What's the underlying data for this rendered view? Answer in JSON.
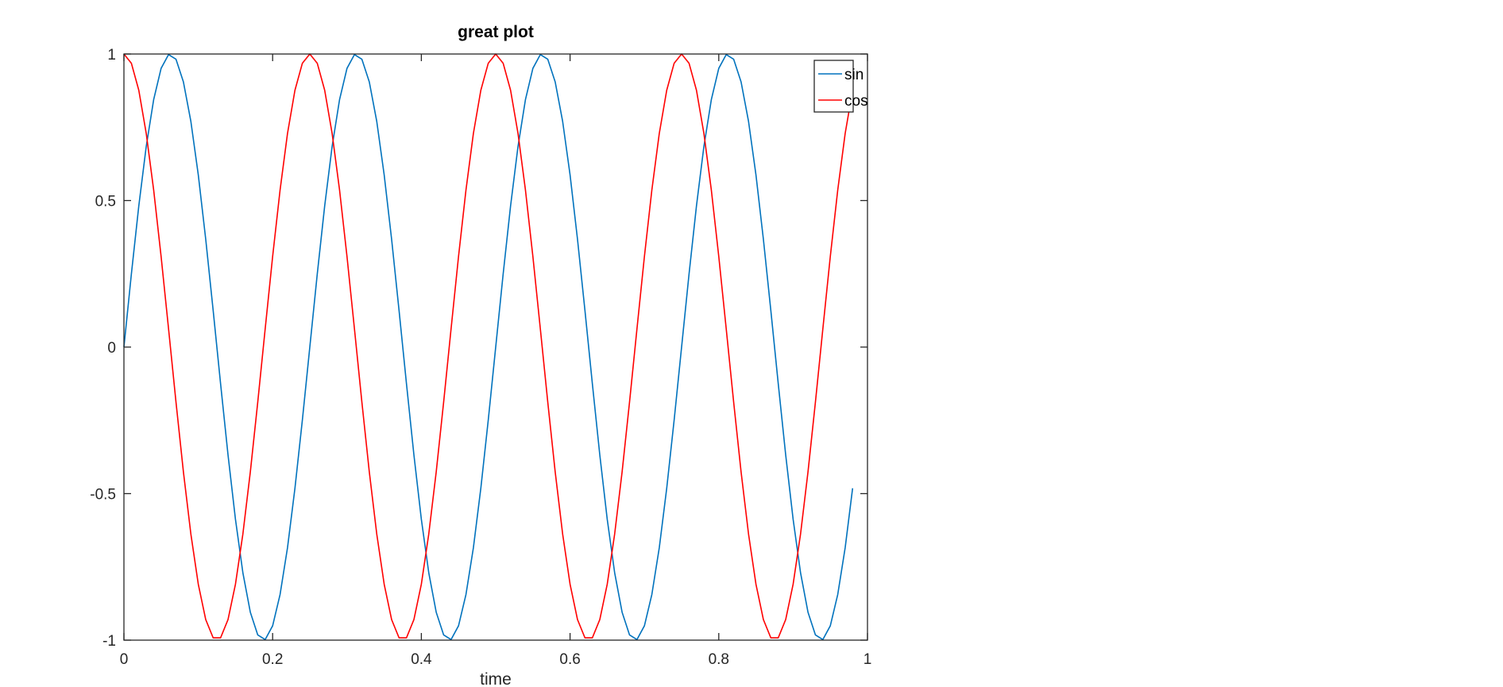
{
  "chart_data": {
    "type": "line",
    "title": "great plot",
    "xlabel": "time",
    "ylabel": "",
    "xlim": [
      0,
      1
    ],
    "ylim": [
      -1,
      1
    ],
    "x_ticks": [
      "0",
      "0.2",
      "0.4",
      "0.6",
      "0.8",
      "1"
    ],
    "y_ticks": [
      "1",
      "0.5",
      "0",
      "-0.5",
      "-1"
    ],
    "grid": false,
    "legend_position": "top-right",
    "sample_step": 0.01,
    "x_end": 0.98,
    "series": [
      {
        "name": "sin",
        "color": "#0072BD",
        "function": "sin",
        "frequency": 4
      },
      {
        "name": "cos",
        "color": "#FF0000",
        "function": "cos",
        "frequency": 4
      }
    ]
  }
}
